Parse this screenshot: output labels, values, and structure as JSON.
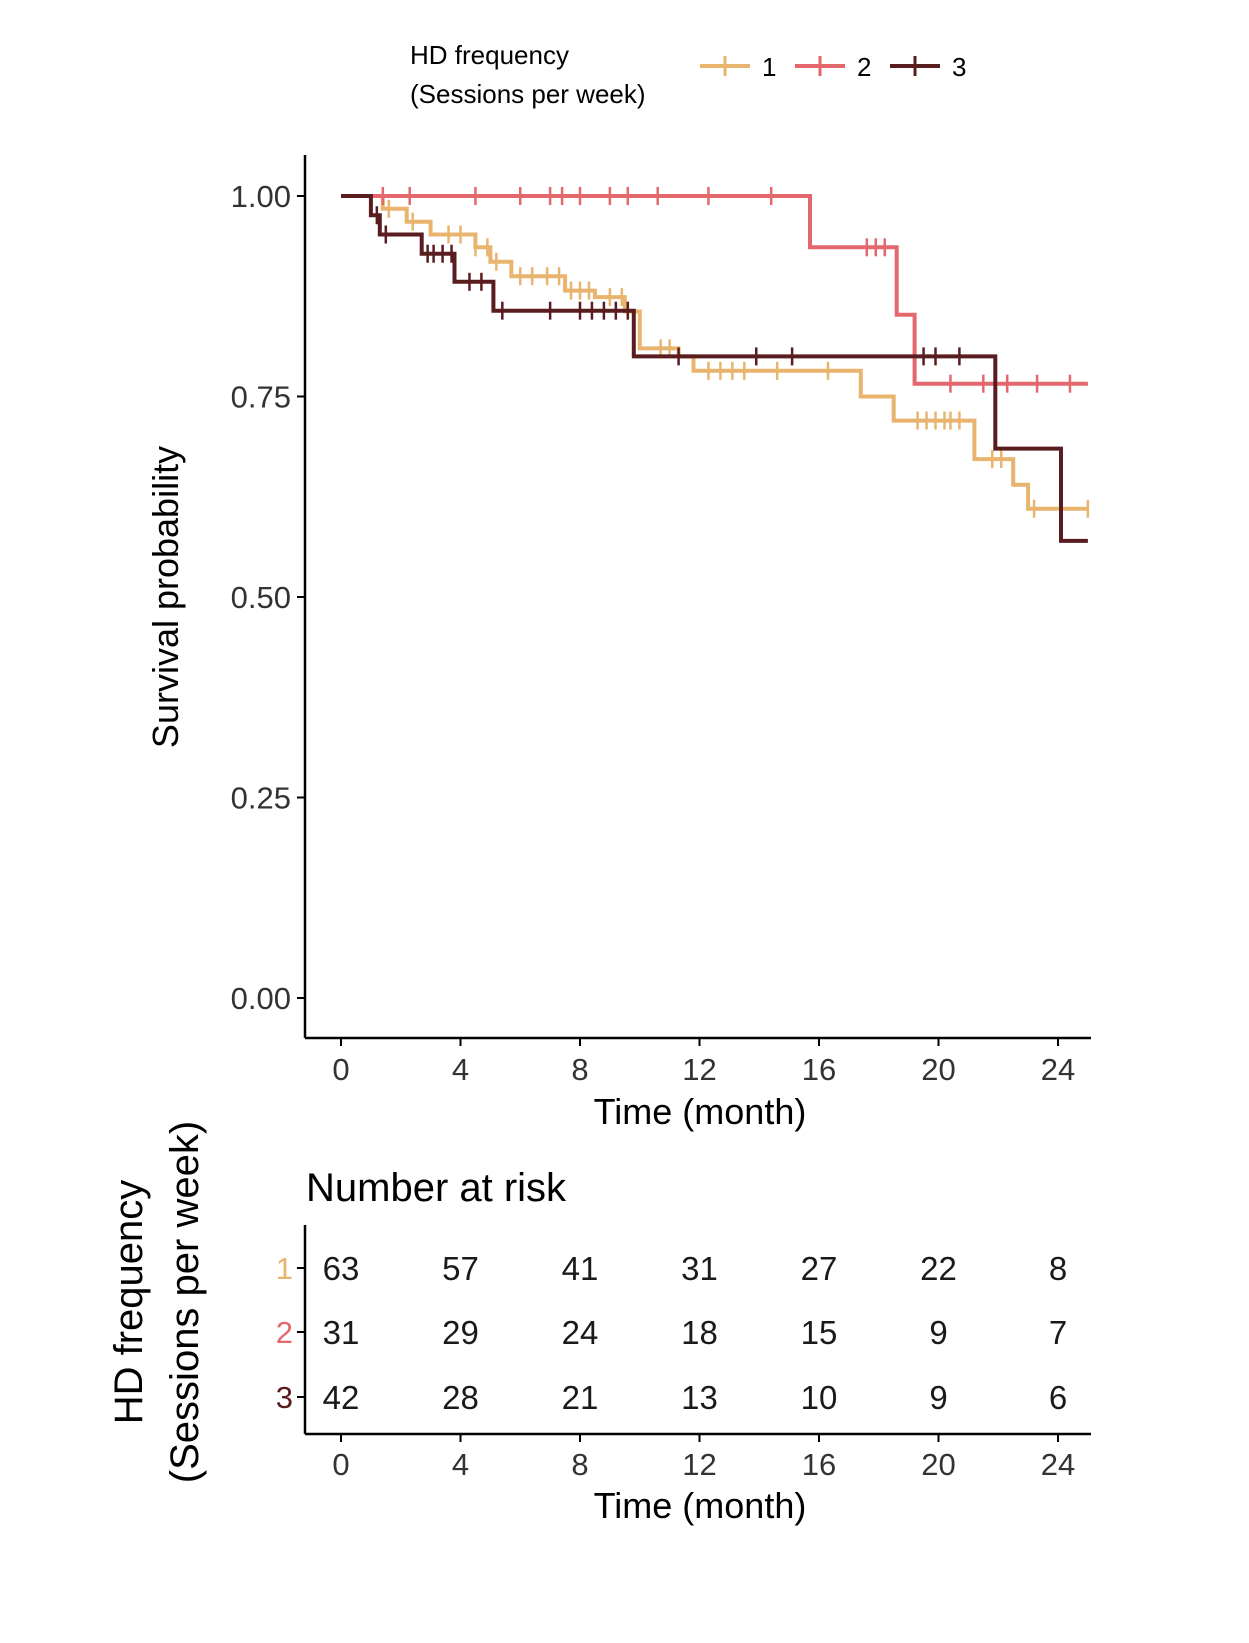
{
  "legend": {
    "title_line1": "HD frequency",
    "title_line2": "(Sessions per week)",
    "entries": [
      "1",
      "2",
      "3"
    ]
  },
  "colors": {
    "series1": "#e8b46e",
    "series2": "#e5676e",
    "series3": "#5a1d1f",
    "axis": "#000000",
    "tick_text": "#333333"
  },
  "chart_data": [
    {
      "type": "line",
      "step": true,
      "title": "",
      "xlabel": "Time (month)",
      "ylabel": "Survival probability",
      "xlim": [
        -0.6,
        25
      ],
      "ylim": [
        0,
        1
      ],
      "x_ticks": [
        0,
        4,
        8,
        12,
        16,
        20,
        24
      ],
      "y_ticks": [
        "0.00",
        "0.25",
        "0.50",
        "0.75",
        "1.00"
      ],
      "grid": false,
      "legend_position": "top",
      "series": [
        {
          "name": "1",
          "points": [
            [
              0,
              1.0
            ],
            [
              1.4,
              1.0
            ],
            [
              1.4,
              0.984
            ],
            [
              2.2,
              0.984
            ],
            [
              2.2,
              0.968
            ],
            [
              3.0,
              0.968
            ],
            [
              3.0,
              0.952
            ],
            [
              4.5,
              0.952
            ],
            [
              4.5,
              0.936
            ],
            [
              5.0,
              0.936
            ],
            [
              5.0,
              0.918
            ],
            [
              5.7,
              0.918
            ],
            [
              5.7,
              0.9
            ],
            [
              7.5,
              0.9
            ],
            [
              7.5,
              0.882
            ],
            [
              8.5,
              0.882
            ],
            [
              8.5,
              0.874
            ],
            [
              9.5,
              0.874
            ],
            [
              9.5,
              0.856
            ],
            [
              10.0,
              0.856
            ],
            [
              10.0,
              0.81
            ],
            [
              11.3,
              0.81
            ],
            [
              11.3,
              0.8
            ],
            [
              11.8,
              0.8
            ],
            [
              11.8,
              0.782
            ],
            [
              17.4,
              0.782
            ],
            [
              17.4,
              0.75
            ],
            [
              18.5,
              0.75
            ],
            [
              18.5,
              0.72
            ],
            [
              21.2,
              0.72
            ],
            [
              21.2,
              0.672
            ],
            [
              22.5,
              0.672
            ],
            [
              22.5,
              0.64
            ],
            [
              23.0,
              0.64
            ],
            [
              23.0,
              0.61
            ],
            [
              25.0,
              0.61
            ]
          ],
          "censor_x": [
            1.6,
            2.4,
            3.6,
            4.0,
            4.5,
            4.9,
            5.2,
            6.0,
            6.4,
            6.9,
            7.3,
            7.7,
            8.0,
            8.3,
            9.0,
            9.4,
            10.7,
            11.0,
            12.3,
            12.7,
            13.1,
            13.5,
            14.6,
            16.3,
            19.3,
            19.6,
            19.9,
            20.2,
            20.4,
            20.7,
            21.8,
            22.1,
            23.2,
            25.0
          ]
        },
        {
          "name": "2",
          "points": [
            [
              0,
              1.0
            ],
            [
              15.7,
              1.0
            ],
            [
              15.7,
              0.936
            ],
            [
              18.6,
              0.936
            ],
            [
              18.6,
              0.852
            ],
            [
              19.2,
              0.852
            ],
            [
              19.2,
              0.766
            ],
            [
              25.0,
              0.766
            ]
          ],
          "censor_x": [
            1.4,
            2.3,
            4.5,
            6.0,
            7.0,
            7.4,
            8.0,
            9.0,
            9.6,
            10.6,
            12.3,
            14.4,
            17.6,
            17.9,
            18.2,
            20.4,
            21.5,
            22.3,
            23.3,
            24.4
          ]
        },
        {
          "name": "3",
          "points": [
            [
              0,
              1.0
            ],
            [
              1.0,
              1.0
            ],
            [
              1.0,
              0.976
            ],
            [
              1.3,
              0.976
            ],
            [
              1.3,
              0.952
            ],
            [
              2.7,
              0.952
            ],
            [
              2.7,
              0.928
            ],
            [
              3.8,
              0.928
            ],
            [
              3.8,
              0.893
            ],
            [
              5.1,
              0.893
            ],
            [
              5.1,
              0.857
            ],
            [
              9.8,
              0.857
            ],
            [
              9.8,
              0.8
            ],
            [
              21.9,
              0.8
            ],
            [
              21.9,
              0.685
            ],
            [
              24.1,
              0.685
            ],
            [
              24.1,
              0.57
            ],
            [
              25.0,
              0.57
            ]
          ],
          "censor_x": [
            1.2,
            1.5,
            2.9,
            3.1,
            3.4,
            3.7,
            4.3,
            4.7,
            5.4,
            7.0,
            8.0,
            8.4,
            8.8,
            9.2,
            9.6,
            11.3,
            13.9,
            15.1,
            19.5,
            19.9,
            20.7
          ]
        }
      ]
    },
    {
      "type": "table",
      "title": "Number at risk",
      "xlabel": "Time (month)",
      "ylabel_line1": "HD frequency",
      "ylabel_line2": "(Sessions per week)",
      "x": [
        0,
        4,
        8,
        12,
        16,
        20,
        24
      ],
      "rows": [
        {
          "name": "1",
          "values": [
            63,
            57,
            41,
            31,
            27,
            22,
            8
          ]
        },
        {
          "name": "2",
          "values": [
            31,
            29,
            24,
            18,
            15,
            9,
            7
          ]
        },
        {
          "name": "3",
          "values": [
            42,
            28,
            21,
            13,
            10,
            9,
            6
          ]
        }
      ]
    }
  ]
}
